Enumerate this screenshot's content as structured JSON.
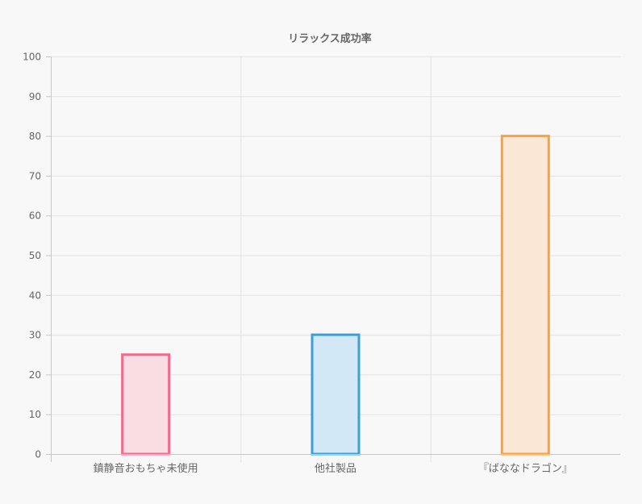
{
  "chart_data": {
    "type": "bar",
    "title": "リラックス成功率",
    "categories": [
      "鎮静音おもちゃ未使用",
      "他社製品",
      "『ばななドラゴン』"
    ],
    "values": [
      25,
      30,
      80
    ],
    "ylim": [
      0,
      100
    ],
    "yticks": [
      0,
      10,
      20,
      30,
      40,
      50,
      60,
      70,
      80,
      90,
      100
    ],
    "grid": true,
    "legend": "none",
    "bar_colors": [
      {
        "border": "#f06a8c",
        "fill": "#fadce3"
      },
      {
        "border": "#3c9fdc",
        "fill": "#d2e8f6"
      },
      {
        "border": "#fba140",
        "fill": "#fae7d6"
      }
    ],
    "grid_color": "#e2e2e2",
    "axis_color": "#c8c8c8"
  }
}
